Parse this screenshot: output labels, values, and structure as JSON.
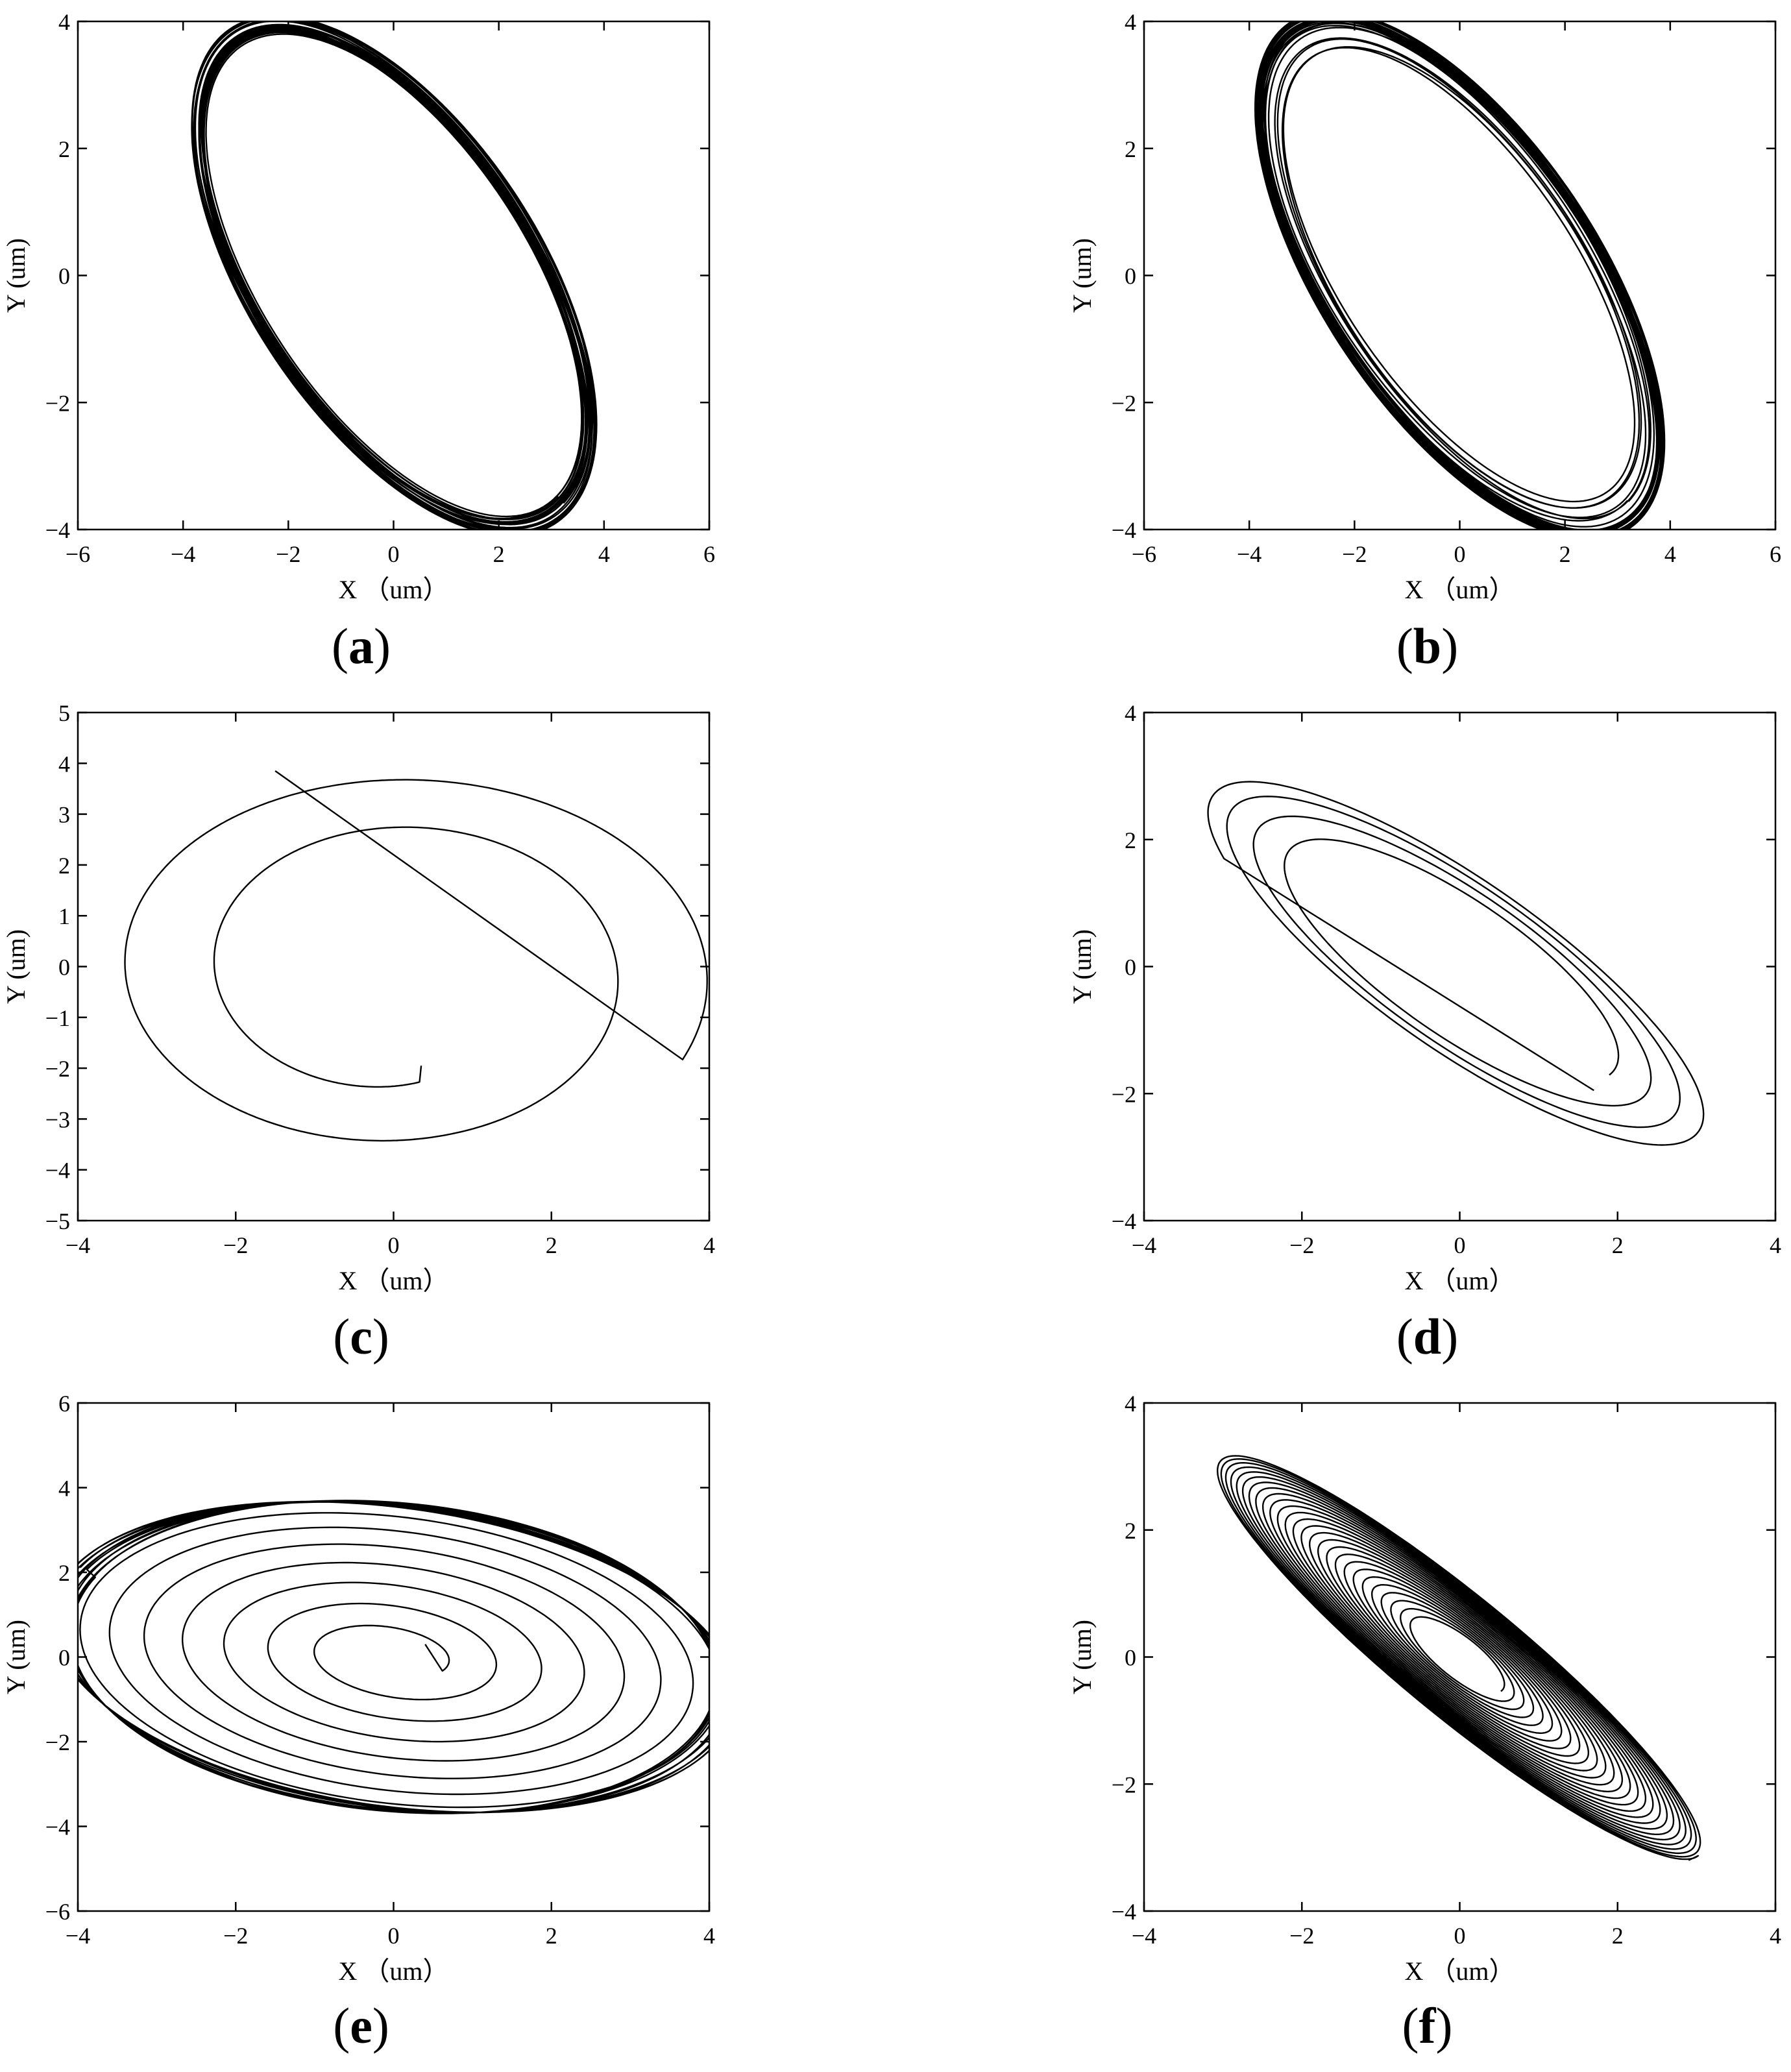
{
  "figure": {
    "description_panels": [
      "a",
      "b",
      "c",
      "d",
      "e",
      "f"
    ]
  },
  "chart_data": [
    {
      "panel": "(a)",
      "panel_letter": "a",
      "type": "line",
      "xlabel": "X （um）",
      "ylabel": "Y (um)",
      "xlim": [
        -6,
        6
      ],
      "ylim": [
        -4,
        4
      ],
      "xticks": [
        -6,
        -4,
        -2,
        0,
        2,
        4,
        6
      ],
      "yticks": [
        -4,
        -2,
        0,
        2,
        4
      ],
      "xtick_labels": [
        "−6",
        "−4",
        "−2",
        "0",
        "2",
        "4",
        "6"
      ],
      "ytick_labels": [
        "−4",
        "−2",
        "0",
        "2",
        "4"
      ],
      "grid": false,
      "series": [
        {
          "kind": "orbit_band",
          "semi_major": 5.0,
          "semi_minor": 2.55,
          "angle_deg": -48,
          "band_inner": 0.93,
          "band_outer": 1.0,
          "loops": 20,
          "color": "#000000"
        }
      ]
    },
    {
      "panel": "(b)",
      "panel_letter": "b",
      "type": "line",
      "xlabel": "X （um）",
      "ylabel": "Y (um)",
      "xlim": [
        -6,
        6
      ],
      "ylim": [
        -4,
        4
      ],
      "xticks": [
        -6,
        -4,
        -2,
        0,
        2,
        4,
        6
      ],
      "yticks": [
        -4,
        -2,
        0,
        2,
        4
      ],
      "xtick_labels": [
        "−6",
        "−4",
        "−2",
        "0",
        "2",
        "4",
        "6"
      ],
      "ytick_labels": [
        "−4",
        "−2",
        "0",
        "2",
        "4"
      ],
      "grid": false,
      "series": [
        {
          "kind": "orbit_band",
          "semi_major": 5.15,
          "semi_minor": 2.4,
          "angle_deg": -48,
          "band_inner": 0.86,
          "band_outer": 1.0,
          "loops": 28,
          "color": "#000000"
        }
      ]
    },
    {
      "panel": "(c)",
      "panel_letter": "c",
      "type": "line",
      "xlabel": "X （um）",
      "ylabel": "Y (um)",
      "xlim": [
        -4,
        4
      ],
      "ylim": [
        -5,
        5
      ],
      "xticks": [
        -4,
        -2,
        0,
        2,
        4
      ],
      "yticks": [
        -5,
        -4,
        -3,
        -2,
        -1,
        0,
        1,
        2,
        3,
        4,
        5
      ],
      "xtick_labels": [
        "−4",
        "−2",
        "0",
        "2",
        "4"
      ],
      "ytick_labels": [
        "−5",
        "−4",
        "−3",
        "−2",
        "−1",
        "0",
        "1",
        "2",
        "3",
        "4",
        "5"
      ],
      "grid": false,
      "series": [
        {
          "kind": "spiral_out",
          "start": [
            0.35,
            -1.95
          ],
          "end": [
            -1.5,
            3.85
          ],
          "center": [
            0.0,
            -0.1
          ],
          "r_start": 2.2,
          "r_end": 4.05,
          "turns": 1.85,
          "stretch": [
            1.0,
            1.0
          ],
          "color": "#000000"
        }
      ]
    },
    {
      "panel": "(d)",
      "panel_letter": "d",
      "type": "line",
      "xlabel": "X （um）",
      "ylabel": "Y (um)",
      "xlim": [
        -4,
        4
      ],
      "ylim": [
        -4,
        4
      ],
      "xticks": [
        -4,
        -2,
        0,
        2,
        4
      ],
      "yticks": [
        -4,
        -2,
        0,
        2,
        4
      ],
      "xtick_labels": [
        "−4",
        "−2",
        "0",
        "2",
        "4"
      ],
      "ytick_labels": [
        "−4",
        "−2",
        "0",
        "2",
        "4"
      ],
      "grid": false,
      "series": [
        {
          "kind": "ellipse_spiral",
          "semi_major_start": 2.55,
          "semi_major_end": 4.15,
          "semi_minor_start": 0.9,
          "semi_minor_end": 1.25,
          "angle_deg": -42,
          "turns": 3.6,
          "end_point": [
            1.7,
            -1.95
          ],
          "color": "#000000"
        }
      ]
    },
    {
      "panel": "(e)",
      "panel_letter": "e",
      "type": "line",
      "xlabel": "X （um）",
      "ylabel": "Y (um)",
      "xlim": [
        -4,
        4
      ],
      "ylim": [
        -6,
        6
      ],
      "xticks": [
        -4,
        -2,
        0,
        2,
        4
      ],
      "yticks": [
        -6,
        -4,
        -2,
        0,
        2,
        4,
        6
      ],
      "xtick_labels": [
        "−4",
        "−2",
        "0",
        "2",
        "4"
      ],
      "ytick_labels": [
        "−6",
        "−4",
        "−2",
        "0",
        "2",
        "4",
        "6"
      ],
      "grid": false,
      "series": [
        {
          "kind": "ellipse_spiral",
          "semi_major_start": 0.7,
          "semi_major_end": 4.4,
          "semi_minor_start": 0.5,
          "semi_minor_end": 3.45,
          "angle_deg": -28,
          "turns": 7.5,
          "settle_loops": 10,
          "start_point": [
            0.4,
            0.3
          ],
          "color": "#000000"
        }
      ]
    },
    {
      "panel": "(f)",
      "panel_letter": "f",
      "type": "line",
      "xlabel": "X （um）",
      "ylabel": "Y (um)",
      "xlim": [
        -4,
        4
      ],
      "ylim": [
        -4,
        4
      ],
      "xticks": [
        -4,
        -2,
        0,
        2,
        4
      ],
      "yticks": [
        -4,
        -2,
        0,
        2,
        4
      ],
      "xtick_labels": [
        "−4",
        "−2",
        "0",
        "2",
        "4"
      ],
      "ytick_labels": [
        "−4",
        "−2",
        "0",
        "2",
        "4"
      ],
      "grid": false,
      "series": [
        {
          "kind": "ellipse_spiral",
          "semi_major_start": 0.75,
          "semi_major_end": 4.35,
          "semi_minor_start": 0.28,
          "semi_minor_end": 0.85,
          "angle_deg": -46,
          "turns": 26,
          "end_point": [
            2.9,
            -3.2
          ],
          "color": "#000000"
        }
      ]
    }
  ]
}
